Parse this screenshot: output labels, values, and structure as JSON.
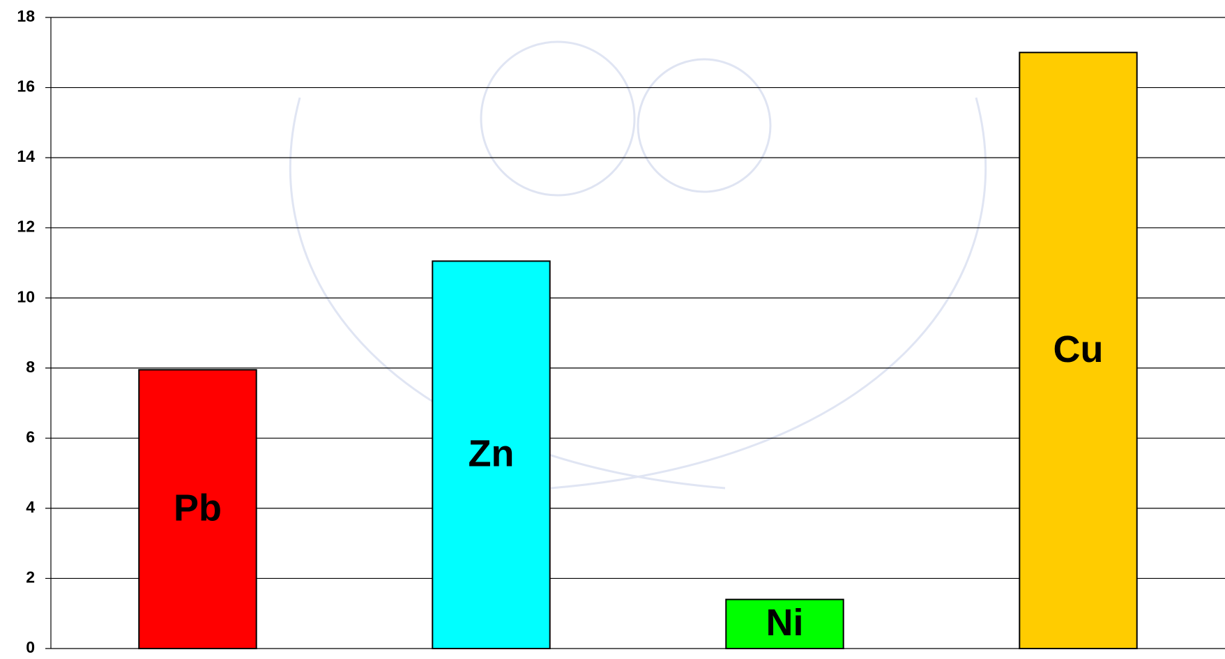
{
  "chart_data": {
    "type": "bar",
    "categories": [
      "Pb",
      "Zn",
      "Ni",
      "Cu"
    ],
    "values": [
      7.95,
      11.05,
      1.4,
      17
    ],
    "colors": [
      "#ff0000",
      "#00ffff",
      "#00ff00",
      "#ffcc00"
    ],
    "ylim": [
      0,
      18
    ],
    "yticks": [
      0,
      2,
      4,
      6,
      8,
      10,
      12,
      14,
      16,
      18
    ],
    "grid": true
  }
}
